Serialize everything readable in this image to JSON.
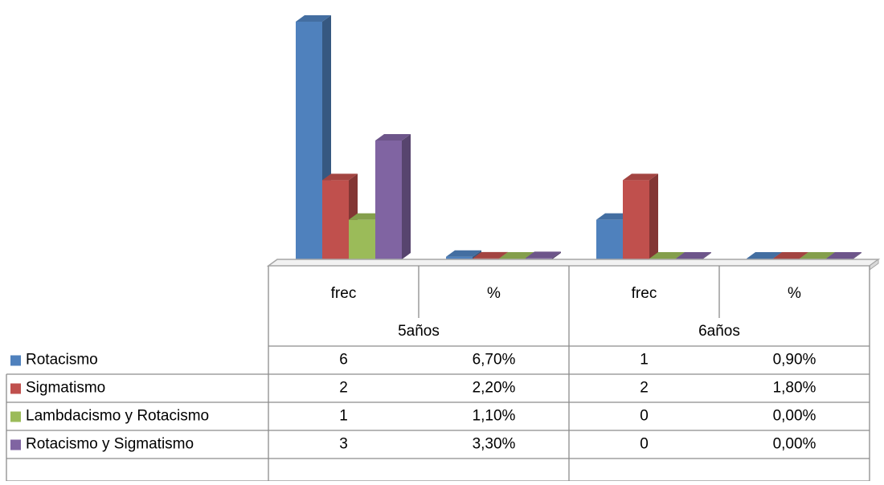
{
  "chart_data": {
    "type": "bar",
    "groups": [
      "5años",
      "6años"
    ],
    "categories": [
      "frec",
      "%",
      "frec",
      "%"
    ],
    "category_group": [
      0,
      0,
      1,
      1
    ],
    "series": [
      {
        "name": "Rotacismo",
        "color": "#4F81BD",
        "values": [
          6,
          0.067,
          1,
          0.009
        ],
        "labels": [
          "6",
          "6,70%",
          "1",
          "0,90%"
        ]
      },
      {
        "name": "Sigmatismo",
        "color": "#C0504D",
        "values": [
          2,
          0.022,
          2,
          0.018
        ],
        "labels": [
          "2",
          "2,20%",
          "2",
          "1,80%"
        ]
      },
      {
        "name": "Lambdacismo y Rotacismo",
        "color": "#9BBB59",
        "values": [
          1,
          0.011,
          0,
          0
        ],
        "labels": [
          "1",
          "1,10%",
          "0",
          "0,00%"
        ]
      },
      {
        "name": "Rotacismo y Sigmatismo",
        "color": "#8064A2",
        "values": [
          3,
          0.033,
          0,
          0
        ],
        "labels": [
          "3",
          "3,30%",
          "0",
          "0,00%"
        ]
      }
    ],
    "ylim": [
      0,
      6
    ],
    "gridlines": false,
    "legend": "data-table-left",
    "style": "3d-column-with-data-table"
  }
}
